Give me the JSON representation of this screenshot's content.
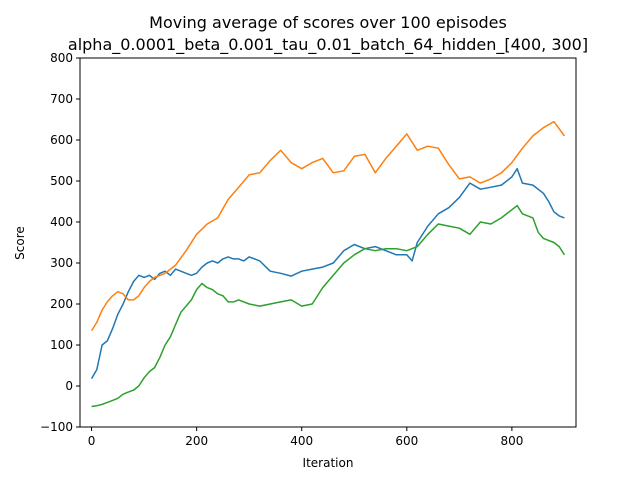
{
  "chart_data": {
    "type": "line",
    "title": "Moving average of scores over 100 episodes",
    "subtitle": "alpha_0.0001_beta_0.001_tau_0.01_batch_64_hidden_[400, 300]",
    "xlabel": "Iteration",
    "ylabel": "Score",
    "xlim": [
      -22,
      922
    ],
    "ylim": [
      -100,
      800
    ],
    "xticks": [
      0,
      200,
      400,
      600,
      800
    ],
    "yticks": [
      -100,
      0,
      100,
      200,
      300,
      400,
      500,
      600,
      700,
      800
    ],
    "grid": false,
    "legend": "none",
    "series": [
      {
        "color": "#1f77b4",
        "x": [
          0,
          10,
          20,
          30,
          40,
          50,
          60,
          70,
          80,
          90,
          100,
          110,
          120,
          130,
          140,
          150,
          160,
          170,
          180,
          190,
          200,
          210,
          220,
          230,
          240,
          250,
          260,
          270,
          280,
          290,
          300,
          320,
          340,
          360,
          380,
          400,
          420,
          440,
          460,
          480,
          500,
          520,
          540,
          560,
          580,
          600,
          610,
          620,
          640,
          660,
          680,
          700,
          720,
          740,
          760,
          780,
          800,
          810,
          820,
          840,
          860,
          870,
          880,
          890,
          900
        ],
        "y": [
          18,
          40,
          100,
          110,
          140,
          175,
          200,
          230,
          255,
          270,
          265,
          270,
          260,
          275,
          280,
          270,
          285,
          280,
          275,
          270,
          275,
          290,
          300,
          305,
          300,
          310,
          315,
          310,
          310,
          305,
          315,
          305,
          280,
          275,
          268,
          280,
          285,
          290,
          300,
          330,
          345,
          335,
          340,
          330,
          320,
          320,
          305,
          350,
          390,
          420,
          435,
          460,
          495,
          480,
          485,
          490,
          510,
          530,
          495,
          490,
          470,
          450,
          425,
          415,
          410
        ]
      },
      {
        "color": "#ff7f0e",
        "x": [
          0,
          10,
          20,
          30,
          40,
          50,
          60,
          70,
          80,
          90,
          100,
          110,
          120,
          140,
          160,
          180,
          200,
          220,
          240,
          260,
          280,
          300,
          320,
          340,
          360,
          380,
          400,
          420,
          440,
          460,
          480,
          500,
          520,
          540,
          560,
          580,
          600,
          620,
          640,
          660,
          680,
          700,
          720,
          740,
          760,
          780,
          800,
          820,
          840,
          860,
          880,
          900
        ],
        "y": [
          135,
          155,
          185,
          205,
          220,
          230,
          225,
          210,
          210,
          220,
          240,
          255,
          265,
          275,
          295,
          330,
          370,
          395,
          410,
          455,
          485,
          515,
          520,
          550,
          575,
          545,
          530,
          545,
          555,
          520,
          525,
          560,
          565,
          520,
          555,
          585,
          615,
          575,
          585,
          580,
          540,
          505,
          510,
          495,
          505,
          520,
          545,
          580,
          610,
          630,
          645,
          610
        ]
      },
      {
        "color": "#2ca02c",
        "x": [
          0,
          10,
          20,
          30,
          40,
          50,
          60,
          70,
          80,
          90,
          100,
          110,
          120,
          130,
          140,
          150,
          160,
          170,
          180,
          190,
          200,
          210,
          220,
          230,
          240,
          250,
          260,
          270,
          280,
          300,
          320,
          340,
          360,
          380,
          400,
          420,
          440,
          460,
          480,
          500,
          520,
          540,
          560,
          580,
          600,
          620,
          640,
          660,
          680,
          700,
          720,
          740,
          760,
          780,
          800,
          810,
          820,
          840,
          850,
          860,
          880,
          890,
          900
        ],
        "y": [
          -50,
          -48,
          -45,
          -40,
          -35,
          -30,
          -20,
          -15,
          -10,
          0,
          20,
          35,
          45,
          70,
          100,
          120,
          150,
          180,
          195,
          210,
          235,
          250,
          240,
          235,
          225,
          220,
          205,
          205,
          210,
          200,
          195,
          200,
          205,
          210,
          195,
          200,
          240,
          270,
          300,
          320,
          335,
          330,
          335,
          335,
          330,
          340,
          370,
          395,
          390,
          385,
          370,
          400,
          395,
          410,
          430,
          440,
          420,
          410,
          375,
          360,
          350,
          340,
          320
        ]
      }
    ]
  }
}
